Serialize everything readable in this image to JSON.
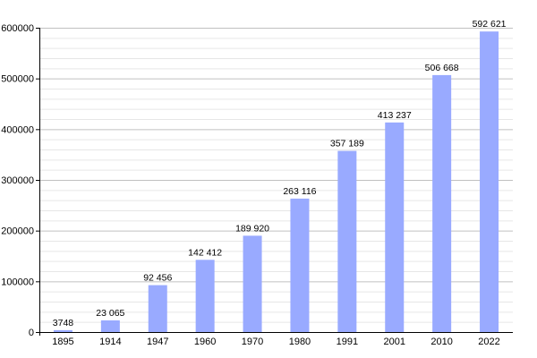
{
  "chart_data": {
    "type": "bar",
    "title": "",
    "xlabel": "",
    "ylabel": "",
    "categories": [
      "1895",
      "1914",
      "1947",
      "1960",
      "1970",
      "1980",
      "1991",
      "2001",
      "2010",
      "2022"
    ],
    "values": [
      3748,
      23065,
      92456,
      142412,
      189920,
      263116,
      357189,
      413237,
      506668,
      592621
    ],
    "data_labels": [
      "3748",
      "23 065",
      "92 456",
      "142 412",
      "189 920",
      "263 116",
      "357 189",
      "413 237",
      "506 668",
      "592 621"
    ],
    "ylim": [
      0,
      600000
    ],
    "y_ticks": [
      0,
      100000,
      200000,
      300000,
      400000,
      500000,
      600000
    ],
    "y_tick_labels": [
      "0",
      "100000",
      "200000",
      "300000",
      "400000",
      "500000",
      "600000"
    ],
    "y_minor_step": 20000,
    "grid": true,
    "legend": "none",
    "colors": {
      "bar": "#99aaff",
      "grid_major": "#c0c0c0",
      "grid_minor": "#e6e6e6",
      "axis": "#000000"
    }
  }
}
